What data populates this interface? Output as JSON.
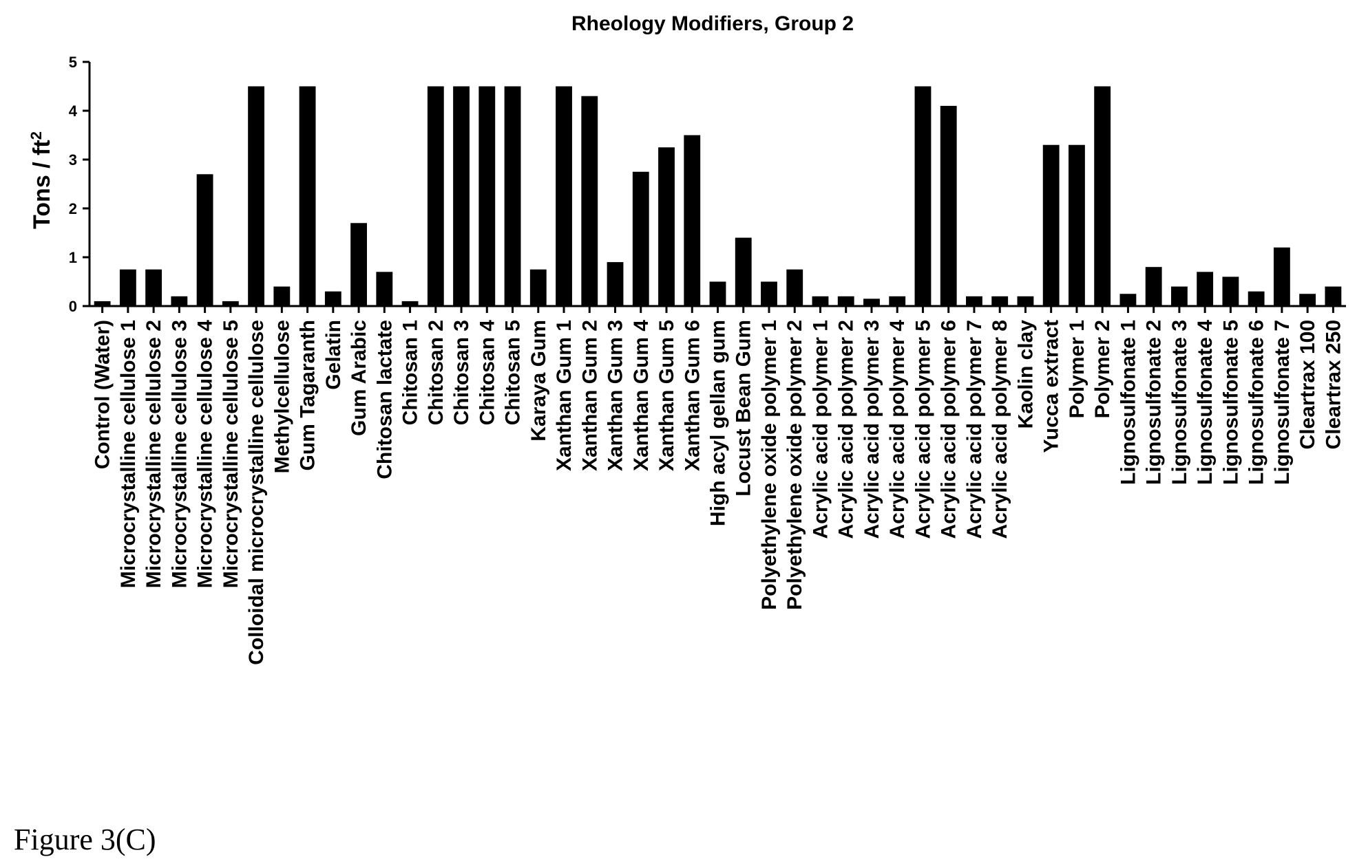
{
  "figure_caption": "Figure 3(C)",
  "chart_data": {
    "type": "bar",
    "title": "Rheology Modifiers, Group 2",
    "ylabel_main": "Tons / ft",
    "ylabel_sup": "2",
    "xlabel": "",
    "ylim": [
      0,
      5
    ],
    "yticks": [
      "0",
      "1",
      "2",
      "3",
      "4",
      "5"
    ],
    "grid": false,
    "bar_color": "#000000",
    "categories": [
      "Control (Water)",
      "Microcrystalline cellulose 1",
      "Microcrystalline cellulose 2",
      "Microcrystalline cellulose 3",
      "Microcrystalline cellulose 4",
      "Microcrystalline cellulose 5",
      "Colloidal microcrystalline cellulose",
      "Methylcellulose",
      "Gum Tagaranth",
      "Gelatin",
      "Gum Arabic",
      "Chitosan lactate",
      "Chitosan 1",
      "Chitosan 2",
      "Chitosan 3",
      "Chitosan 4",
      "Chitosan 5",
      "Karaya Gum",
      "Xanthan Gum 1",
      "Xanthan Gum 2",
      "Xanthan Gum 3",
      "Xanthan Gum 4",
      "Xanthan Gum 5",
      "Xanthan Gum 6",
      "High acyl gellan gum",
      "Locust Bean Gum",
      "Polyethylene oxide polymer 1",
      "Polyethylene oxide polymer 2",
      "Acrylic acid polymer 1",
      "Acrylic acid polymer 2",
      "Acrylic acid polymer 3",
      "Acrylic acid polymer 4",
      "Acrylic acid polymer 5",
      "Acrylic acid polymer 6",
      "Acrylic acid polymer 7",
      "Acrylic acid polymer 8",
      "Kaolin clay",
      "Yucca extract",
      "Polymer 1",
      "Polymer 2",
      "Lignosulfonate 1",
      "Lignosulfonate 2",
      "Lignosulfonate 3",
      "Lignosulfonate 4",
      "Lignosulfonate 5",
      "Lignosulfonate 6",
      "Lignosulfonate 7",
      "Cleartrax 100",
      "Cleartrax 250"
    ],
    "values": [
      0.1,
      0.75,
      0.75,
      0.2,
      2.7,
      0.1,
      4.5,
      0.4,
      4.5,
      0.3,
      1.7,
      0.7,
      0.1,
      4.5,
      4.5,
      4.5,
      4.5,
      0.75,
      4.5,
      4.3,
      0.9,
      2.75,
      3.25,
      3.5,
      0.5,
      1.4,
      0.5,
      0.75,
      0.2,
      0.2,
      0.15,
      0.2,
      4.5,
      4.1,
      0.2,
      0.2,
      0.2,
      3.3,
      3.3,
      4.5,
      0.25,
      0.8,
      0.4,
      0.7,
      0.6,
      0.3,
      1.2,
      0.25,
      0.4
    ]
  }
}
